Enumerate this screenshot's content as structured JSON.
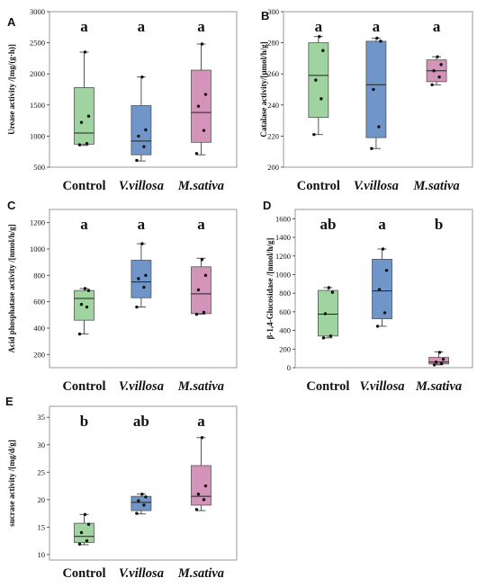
{
  "chart_data": [
    {
      "type": "box",
      "panel_label": "A",
      "ylabel": "Urease activity /[mg/(g·h)]",
      "ylim": [
        500,
        3000
      ],
      "yticks": [
        500,
        1000,
        1500,
        2000,
        2500,
        3000
      ],
      "categories": [
        "Control",
        "V.villosa",
        "M.sativa"
      ],
      "italic": [
        false,
        true,
        true
      ],
      "colors": [
        "#9fd4a0",
        "#6f95c9",
        "#d493b8"
      ],
      "significance": [
        "a",
        "a",
        "a"
      ],
      "boxes": [
        {
          "min": 850,
          "q1": 870,
          "median": 1050,
          "q3": 1780,
          "max": 2350,
          "points": [
            860,
            880,
            1220,
            1320,
            2350
          ]
        },
        {
          "min": 600,
          "q1": 700,
          "median": 920,
          "q3": 1490,
          "max": 1950,
          "points": [
            610,
            830,
            1000,
            1100,
            1950
          ]
        },
        {
          "min": 700,
          "q1": 900,
          "median": 1380,
          "q3": 2060,
          "max": 2480,
          "points": [
            720,
            1090,
            1480,
            1670,
            2480
          ]
        }
      ]
    },
    {
      "type": "box",
      "panel_label": "B",
      "ylabel": "Catalase activity/[μmol/h/g]",
      "ylim": [
        200,
        300
      ],
      "yticks": [
        200,
        220,
        240,
        260,
        280,
        300
      ],
      "categories": [
        "Control",
        "V.villosa",
        "M.sativa"
      ],
      "italic": [
        false,
        true,
        true
      ],
      "colors": [
        "#9fd4a0",
        "#6f95c9",
        "#d493b8"
      ],
      "significance": [
        "a",
        "a",
        "a"
      ],
      "boxes": [
        {
          "min": 221,
          "q1": 232,
          "median": 259,
          "q3": 280,
          "max": 284,
          "points": [
            221,
            244,
            256,
            275,
            284
          ]
        },
        {
          "min": 212,
          "q1": 219,
          "median": 253,
          "q3": 281,
          "max": 283,
          "points": [
            212,
            226,
            250,
            281,
            283
          ]
        },
        {
          "min": 253,
          "q1": 255,
          "median": 262,
          "q3": 269,
          "max": 271,
          "points": [
            253,
            258,
            262,
            266,
            271
          ]
        }
      ]
    },
    {
      "type": "box",
      "panel_label": "C",
      "ylabel": "Acid phosphatase activity /[nmol/h/g]",
      "ylim": [
        100,
        1300
      ],
      "yticks": [
        200,
        400,
        600,
        800,
        1000,
        1200
      ],
      "categories": [
        "Control",
        "V.villosa",
        "M.sativa"
      ],
      "italic": [
        false,
        true,
        true
      ],
      "colors": [
        "#9fd4a0",
        "#6f95c9",
        "#d493b8"
      ],
      "significance": [
        "a",
        "a",
        "a"
      ],
      "boxes": [
        {
          "min": 355,
          "q1": 460,
          "median": 625,
          "q3": 685,
          "max": 700,
          "points": [
            355,
            560,
            580,
            685,
            700
          ]
        },
        {
          "min": 560,
          "q1": 630,
          "median": 750,
          "q3": 915,
          "max": 1040,
          "points": [
            560,
            710,
            775,
            800,
            1040
          ]
        },
        {
          "min": 505,
          "q1": 510,
          "median": 660,
          "q3": 865,
          "max": 930,
          "points": [
            505,
            520,
            690,
            800,
            920
          ]
        }
      ]
    },
    {
      "type": "box",
      "panel_label": "D",
      "ylabel": "β-1,4-Glucosidase /[nmol/h/g]",
      "ylim": [
        0,
        1700
      ],
      "yticks": [
        0,
        200,
        400,
        600,
        800,
        1000,
        1200,
        1400,
        1600
      ],
      "categories": [
        "Control",
        "V.villosa",
        "M.sativa"
      ],
      "italic": [
        false,
        true,
        true
      ],
      "colors": [
        "#9fd4a0",
        "#6f95c9",
        "#d493b8"
      ],
      "significance": [
        "ab",
        "a",
        "b"
      ],
      "boxes": [
        {
          "min": 320,
          "q1": 340,
          "median": 575,
          "q3": 830,
          "max": 860,
          "points": [
            320,
            340,
            580,
            810,
            860
          ]
        },
        {
          "min": 445,
          "q1": 525,
          "median": 825,
          "q3": 1165,
          "max": 1275,
          "points": [
            445,
            590,
            840,
            1045,
            1275
          ]
        },
        {
          "min": 30,
          "q1": 40,
          "median": 60,
          "q3": 110,
          "max": 170,
          "points": [
            30,
            45,
            60,
            90,
            165
          ]
        }
      ]
    },
    {
      "type": "box",
      "panel_label": "E",
      "ylabel": "sucrase activity /[mg/d/g]",
      "ylim": [
        9,
        37
      ],
      "yticks": [
        10,
        15,
        20,
        25,
        30,
        35
      ],
      "categories": [
        "Control",
        "V.villosa",
        "M.sativa"
      ],
      "italic": [
        false,
        true,
        true
      ],
      "colors": [
        "#9fd4a0",
        "#6f95c9",
        "#d493b8"
      ],
      "significance": [
        "b",
        "ab",
        "a"
      ],
      "boxes": [
        {
          "min": 11.8,
          "q1": 12.2,
          "median": 13.3,
          "q3": 15.7,
          "max": 17.3,
          "points": [
            11.9,
            12.5,
            14.0,
            15.5,
            17.3
          ]
        },
        {
          "min": 17.4,
          "q1": 18.0,
          "median": 19.5,
          "q3": 20.6,
          "max": 21.0,
          "points": [
            17.5,
            19.0,
            19.8,
            20.5,
            21.0
          ]
        },
        {
          "min": 18.0,
          "q1": 19.0,
          "median": 20.6,
          "q3": 26.2,
          "max": 31.3,
          "points": [
            18.2,
            20.0,
            21.0,
            22.5,
            31.3
          ]
        }
      ]
    }
  ]
}
